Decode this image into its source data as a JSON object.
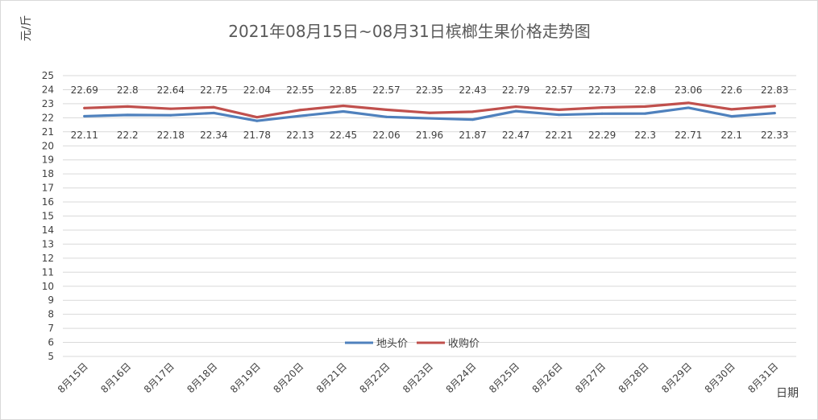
{
  "chart_data": {
    "type": "line",
    "title": "2021年08月15日~08月31日槟榔生果价格走势图",
    "ylabel": "元/斤",
    "xlabel": "日期",
    "ylim": [
      5,
      25
    ],
    "ytick_step": 1,
    "grid": true,
    "legend_position": "inside-bottom-center",
    "categories": [
      "8月15日",
      "8月16日",
      "8月17日",
      "8月18日",
      "8月19日",
      "8月20日",
      "8月21日",
      "8月22日",
      "8月23日",
      "8月24日",
      "8月25日",
      "8月26日",
      "8月27日",
      "8月28日",
      "8月29日",
      "8月30日",
      "8月31日"
    ],
    "series": [
      {
        "name": "地头价",
        "color": "#4f81bd",
        "label_position": "below",
        "values": [
          22.11,
          22.2,
          22.18,
          22.34,
          21.78,
          22.13,
          22.45,
          22.06,
          21.96,
          21.87,
          22.47,
          22.21,
          22.29,
          22.3,
          22.71,
          22.1,
          22.33
        ]
      },
      {
        "name": "收购价",
        "color": "#c0504d",
        "label_position": "above",
        "values": [
          22.69,
          22.8,
          22.64,
          22.75,
          22.04,
          22.55,
          22.85,
          22.57,
          22.35,
          22.43,
          22.79,
          22.57,
          22.73,
          22.8,
          23.06,
          22.6,
          22.83
        ]
      }
    ]
  }
}
